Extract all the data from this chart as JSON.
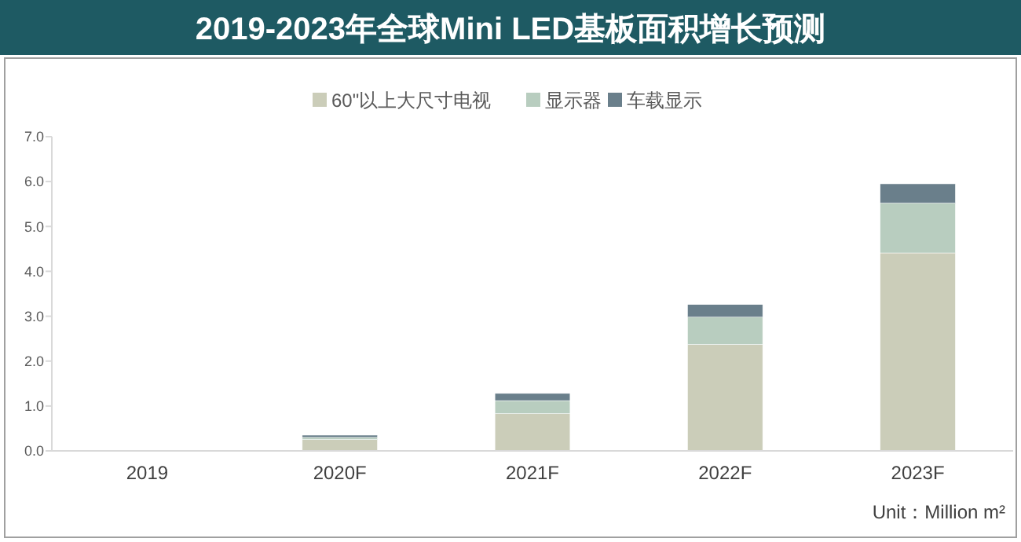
{
  "chart_data": {
    "type": "bar",
    "title": "2019-2023年全球Mini LED基板面积增长预测",
    "categories": [
      "2019",
      "2020F",
      "2021F",
      "2022F",
      "2023F"
    ],
    "stacked": true,
    "series": [
      {
        "name": "60\"以上大尺寸电视",
        "color": "#cbcdb9",
        "values": [
          0,
          0.25,
          0.83,
          2.37,
          4.41
        ]
      },
      {
        "name": "显示器",
        "color": "#b8cdbf",
        "values": [
          0,
          0.05,
          0.29,
          0.61,
          1.11
        ]
      },
      {
        "name": "车载显示",
        "color": "#6a7f8b",
        "values": [
          0,
          0.05,
          0.16,
          0.28,
          0.43
        ]
      }
    ],
    "ylim": [
      0,
      7
    ],
    "yticks": [
      {
        "value": 0,
        "label": "0.0"
      },
      {
        "value": 1,
        "label": "1.0"
      },
      {
        "value": 2,
        "label": "2.0"
      },
      {
        "value": 3,
        "label": "3.0"
      },
      {
        "value": 4,
        "label": "4.0"
      },
      {
        "value": 5,
        "label": "5.0"
      },
      {
        "value": 6,
        "label": "6.0"
      },
      {
        "value": 7,
        "label": "7.0"
      }
    ],
    "legend": "top",
    "annotations": [
      "Unit：Million m²"
    ]
  }
}
